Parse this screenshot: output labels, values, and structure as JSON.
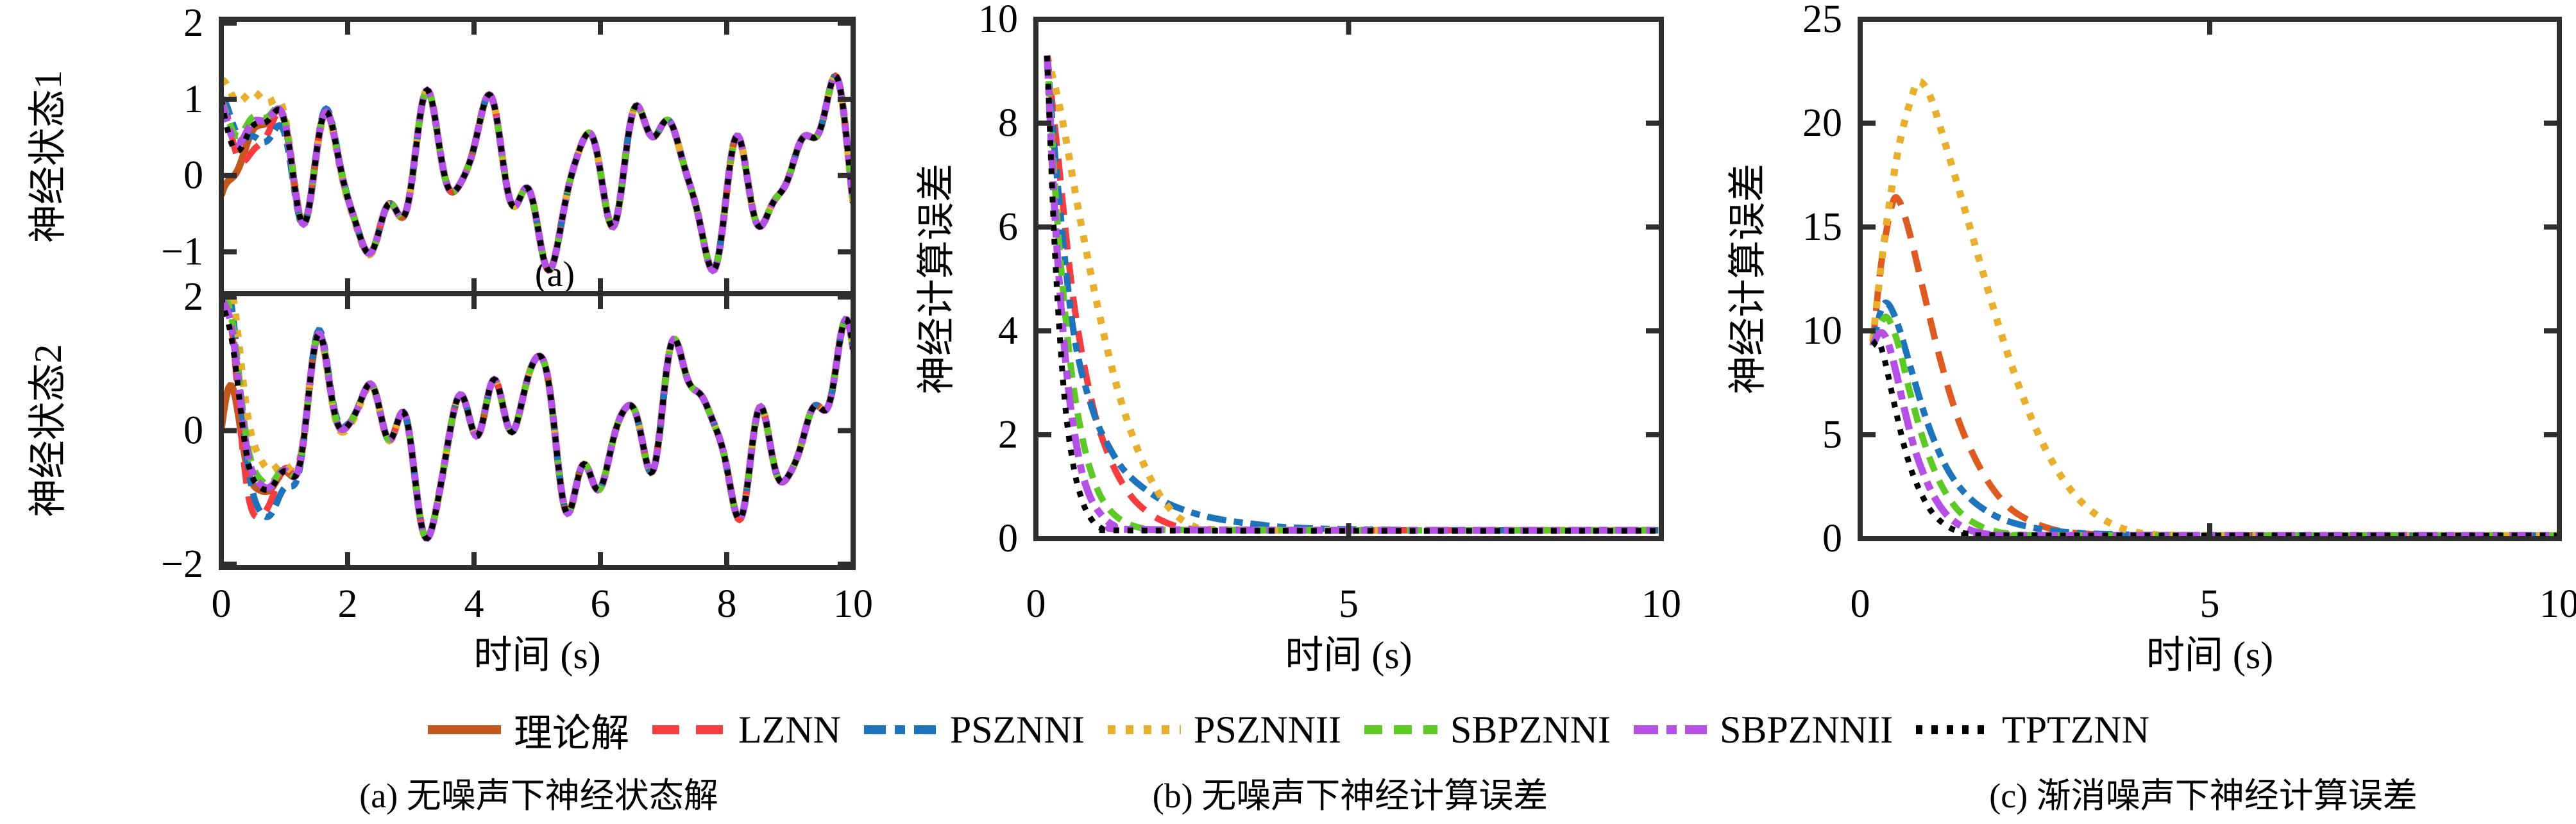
{
  "figure": {
    "background": "#ffffff",
    "axis_color": "#2e2e2e"
  },
  "legend": {
    "items": [
      {
        "key": "THEO",
        "label": "理论解",
        "color": "#C4581C",
        "dash": ""
      },
      {
        "key": "LZNN",
        "label": "LZNN",
        "color": "#F83C3E",
        "dash": "42 26"
      },
      {
        "key": "PSZNNI",
        "label": "PSZNNI",
        "color": "#1B74BC",
        "dash": "34 14 16 14"
      },
      {
        "key": "PSZNNII",
        "label": "PSZNNII",
        "color": "#E9AF2B",
        "dash": "12 16"
      },
      {
        "key": "SBPZNNI",
        "label": "SBPZNNI",
        "color": "#5BCB24",
        "dash": "28 18"
      },
      {
        "key": "SBPZNNII",
        "label": "SBPZNNII",
        "color": "#B44FE8",
        "dash": "38 13 16 13"
      },
      {
        "key": "TPTZNN",
        "label": "TPTZNN",
        "color": "#000000",
        "dash": "10 14"
      }
    ]
  },
  "captions": {
    "a": "(a) 无噪声下神经状态解",
    "b": "(b) 无噪声下神经计算误差",
    "c": "(c) 渐消噪声下神经计算误差"
  },
  "series_styles": [
    {
      "key": "THEO",
      "color": "#C4581C",
      "dash": "",
      "width": 11
    },
    {
      "key": "LZNN",
      "color": "#F83C3E",
      "dash": "34 20",
      "width": 10
    },
    {
      "key": "PSZNNI",
      "color": "#1B74BC",
      "dash": "30 12 14 12",
      "width": 10
    },
    {
      "key": "PSZNNII",
      "color": "#E9AF2B",
      "dash": "11 15",
      "width": 11
    },
    {
      "key": "SBPZNNI",
      "color": "#5BCB24",
      "dash": "24 16",
      "width": 10
    },
    {
      "key": "SBPZNNII",
      "color": "#B44FE8",
      "dash": "36 12 14 12",
      "width": 11
    },
    {
      "key": "TPTZNN",
      "color": "#000000",
      "dash": "9 13",
      "width": 9
    }
  ],
  "chart_data": [
    {
      "id": "a",
      "type": "line",
      "xlabel": "时间 (s)",
      "x_range": [
        0,
        10
      ],
      "x_ticks": [
        0,
        2,
        4,
        6,
        8,
        10
      ],
      "panels": [
        {
          "id": "state1",
          "ylabel": "神经状态1",
          "ylim": [
            -1.55,
            2.05
          ],
          "yticks": [
            2,
            1,
            0,
            -1
          ],
          "inner_label": "(a)",
          "theoretical_start": -0.26,
          "methods_start": 1.0,
          "pszonnii_start": 1.25,
          "harmonics": [
            [
              0.55,
              2.2,
              -0.5
            ],
            [
              0.5,
              4.9,
              -1.1
            ],
            [
              0.4,
              7.8,
              0.8
            ],
            [
              0.2,
              11.5,
              2.2
            ]
          ]
        },
        {
          "id": "state2",
          "ylabel": "神经状态2",
          "ylim": [
            -2.05,
            2.05
          ],
          "yticks": [
            2,
            0,
            -2
          ],
          "inner_label": "",
          "theoretical_start": 0.0,
          "methods_start": 2.0,
          "pszonnii_start": 2.0,
          "harmonics": [
            [
              0.7,
              2.4,
              3.17
            ],
            [
              0.5,
              5.3,
              0.0
            ],
            [
              0.45,
              9.0,
              0.1
            ],
            [
              0.15,
              13.5,
              0.0
            ]
          ]
        }
      ],
      "convergence": [
        {
          "key": "LZNN",
          "tau": 0.38,
          "osc": 5.0
        },
        {
          "key": "PSZNNI",
          "tau": 0.5,
          "osc": 3.5
        },
        {
          "key": "PSZNNII",
          "tau": 0.55,
          "osc": 1.2
        },
        {
          "key": "SBPZNNI",
          "tau": 0.25,
          "osc": 0.0
        },
        {
          "key": "SBPZNNII",
          "tau": 0.2,
          "osc": 0.0
        },
        {
          "key": "TPTZNN",
          "tau": 0.16,
          "osc": 0.0
        }
      ]
    },
    {
      "id": "b",
      "type": "line",
      "xlabel": "时间 (s)",
      "ylabel": "神经计算误差",
      "x_range": [
        0,
        10
      ],
      "x_ticks": [
        0,
        5,
        10
      ],
      "ylim": [
        0,
        10
      ],
      "yticks": [
        0,
        2,
        4,
        6,
        8,
        10
      ],
      "series": [
        {
          "key": "LZNN",
          "points": [
            [
              0.18,
              9.3
            ],
            [
              0.35,
              7.4
            ],
            [
              0.6,
              4.6
            ],
            [
              0.9,
              2.6
            ],
            [
              1.2,
              1.5
            ],
            [
              1.5,
              0.85
            ],
            [
              1.8,
              0.5
            ],
            [
              2.1,
              0.3
            ],
            [
              2.4,
              0.2
            ],
            [
              2.8,
              0.17
            ],
            [
              4,
              0.16
            ],
            [
              7,
              0.16
            ],
            [
              10,
              0.16
            ]
          ]
        },
        {
          "key": "PSZNNI",
          "points": [
            [
              0.18,
              9.3
            ],
            [
              0.35,
              6.8
            ],
            [
              0.6,
              4.0
            ],
            [
              0.9,
              2.5
            ],
            [
              1.2,
              1.7
            ],
            [
              1.5,
              1.2
            ],
            [
              2,
              0.75
            ],
            [
              2.5,
              0.5
            ],
            [
              3,
              0.36
            ],
            [
              3.5,
              0.28
            ],
            [
              4,
              0.22
            ],
            [
              5,
              0.18
            ],
            [
              7,
              0.16
            ],
            [
              10,
              0.16
            ]
          ]
        },
        {
          "key": "PSZNNII",
          "points": [
            [
              0.18,
              9.3
            ],
            [
              0.4,
              8.2
            ],
            [
              0.7,
              6.2
            ],
            [
              1,
              4.4
            ],
            [
              1.3,
              2.9
            ],
            [
              1.6,
              1.8
            ],
            [
              1.9,
              1.0
            ],
            [
              2.2,
              0.5
            ],
            [
              2.5,
              0.25
            ],
            [
              2.8,
              0.18
            ],
            [
              4,
              0.16
            ],
            [
              7,
              0.16
            ],
            [
              10,
              0.16
            ]
          ]
        },
        {
          "key": "SBPZNNI",
          "points": [
            [
              0.18,
              9.3
            ],
            [
              0.35,
              6.0
            ],
            [
              0.55,
              3.4
            ],
            [
              0.75,
              1.9
            ],
            [
              0.95,
              1.05
            ],
            [
              1.15,
              0.6
            ],
            [
              1.4,
              0.33
            ],
            [
              1.7,
              0.2
            ],
            [
              2,
              0.17
            ],
            [
              5,
              0.16
            ],
            [
              10,
              0.16
            ]
          ]
        },
        {
          "key": "SBPZNNII",
          "points": [
            [
              0.18,
              9.3
            ],
            [
              0.32,
              5.9
            ],
            [
              0.5,
              3.1
            ],
            [
              0.68,
              1.6
            ],
            [
              0.85,
              0.85
            ],
            [
              1.05,
              0.45
            ],
            [
              1.25,
              0.25
            ],
            [
              1.5,
              0.18
            ],
            [
              5,
              0.16
            ],
            [
              10,
              0.16
            ]
          ]
        },
        {
          "key": "TPTZNN",
          "points": [
            [
              0.18,
              9.3
            ],
            [
              0.3,
              5.6
            ],
            [
              0.45,
              2.8
            ],
            [
              0.6,
              1.4
            ],
            [
              0.75,
              0.7
            ],
            [
              0.9,
              0.35
            ],
            [
              1.05,
              0.2
            ],
            [
              1.3,
              0.16
            ],
            [
              5,
              0.15
            ],
            [
              10,
              0.15
            ]
          ]
        }
      ]
    },
    {
      "id": "c",
      "type": "line",
      "xlabel": "时间 (s)",
      "ylabel": "神经计算误差",
      "x_range": [
        0,
        10
      ],
      "x_ticks": [
        0,
        5,
        10
      ],
      "ylim": [
        0,
        25
      ],
      "yticks": [
        0,
        5,
        10,
        15,
        20,
        25
      ],
      "series": [
        {
          "key": "LZNN",
          "color_override": "#DE5A1E",
          "points": [
            [
              0.18,
              9.3
            ],
            [
              0.3,
              13.2
            ],
            [
              0.45,
              16.0
            ],
            [
              0.55,
              16.3
            ],
            [
              0.7,
              14.8
            ],
            [
              0.9,
              12.0
            ],
            [
              1.1,
              9.2
            ],
            [
              1.3,
              6.8
            ],
            [
              1.5,
              4.9
            ],
            [
              1.8,
              2.9
            ],
            [
              2.1,
              1.6
            ],
            [
              2.4,
              0.9
            ],
            [
              2.7,
              0.5
            ],
            [
              3,
              0.3
            ],
            [
              3.5,
              0.19
            ],
            [
              4,
              0.16
            ],
            [
              7,
              0.15
            ],
            [
              10,
              0.15
            ]
          ]
        },
        {
          "key": "PSZNNI",
          "points": [
            [
              0.18,
              9.3
            ],
            [
              0.3,
              11.0
            ],
            [
              0.4,
              11.3
            ],
            [
              0.55,
              10.2
            ],
            [
              0.75,
              7.9
            ],
            [
              0.95,
              5.7
            ],
            [
              1.15,
              4.0
            ],
            [
              1.35,
              2.8
            ],
            [
              1.6,
              1.85
            ],
            [
              1.9,
              1.15
            ],
            [
              2.2,
              0.75
            ],
            [
              2.6,
              0.45
            ],
            [
              3,
              0.3
            ],
            [
              3.5,
              0.22
            ],
            [
              4.5,
              0.17
            ],
            [
              7,
              0.15
            ],
            [
              10,
              0.15
            ]
          ]
        },
        {
          "key": "PSZNNII",
          "points": [
            [
              0.18,
              9.5
            ],
            [
              0.35,
              14.5
            ],
            [
              0.55,
              18.8
            ],
            [
              0.75,
              21.4
            ],
            [
              0.85,
              22.0
            ],
            [
              1.0,
              21.3
            ],
            [
              1.2,
              19.2
            ],
            [
              1.5,
              15.8
            ],
            [
              1.8,
              12.3
            ],
            [
              2.1,
              9.0
            ],
            [
              2.4,
              6.2
            ],
            [
              2.7,
              4.0
            ],
            [
              3,
              2.4
            ],
            [
              3.3,
              1.35
            ],
            [
              3.6,
              0.7
            ],
            [
              3.9,
              0.35
            ],
            [
              4.2,
              0.2
            ],
            [
              4.6,
              0.16
            ],
            [
              7,
              0.15
            ],
            [
              10,
              0.15
            ]
          ]
        },
        {
          "key": "SBPZNNI",
          "points": [
            [
              0.18,
              9.3
            ],
            [
              0.3,
              10.4
            ],
            [
              0.4,
              10.6
            ],
            [
              0.55,
              9.3
            ],
            [
              0.7,
              7.2
            ],
            [
              0.9,
              4.8
            ],
            [
              1.1,
              3.0
            ],
            [
              1.3,
              1.8
            ],
            [
              1.5,
              1.05
            ],
            [
              1.75,
              0.55
            ],
            [
              2,
              0.3
            ],
            [
              2.3,
              0.19
            ],
            [
              2.6,
              0.16
            ],
            [
              7,
              0.15
            ],
            [
              10,
              0.15
            ]
          ]
        },
        {
          "key": "SBPZNNII",
          "points": [
            [
              0.18,
              9.3
            ],
            [
              0.28,
              9.9
            ],
            [
              0.38,
              9.6
            ],
            [
              0.5,
              8.2
            ],
            [
              0.65,
              6.0
            ],
            [
              0.8,
              4.1
            ],
            [
              1,
              2.4
            ],
            [
              1.2,
              1.3
            ],
            [
              1.4,
              0.7
            ],
            [
              1.6,
              0.38
            ],
            [
              1.85,
              0.2
            ],
            [
              2.1,
              0.16
            ],
            [
              7,
              0.15
            ],
            [
              10,
              0.15
            ]
          ]
        },
        {
          "key": "TPTZNN",
          "points": [
            [
              0.18,
              9.3
            ],
            [
              0.26,
              9.5
            ],
            [
              0.35,
              8.6
            ],
            [
              0.5,
              6.3
            ],
            [
              0.65,
              4.2
            ],
            [
              0.8,
              2.7
            ],
            [
              1,
              1.4
            ],
            [
              1.2,
              0.7
            ],
            [
              1.4,
              0.35
            ],
            [
              1.6,
              0.2
            ],
            [
              1.85,
              0.16
            ],
            [
              7,
              0.15
            ],
            [
              10,
              0.15
            ]
          ]
        }
      ]
    }
  ]
}
